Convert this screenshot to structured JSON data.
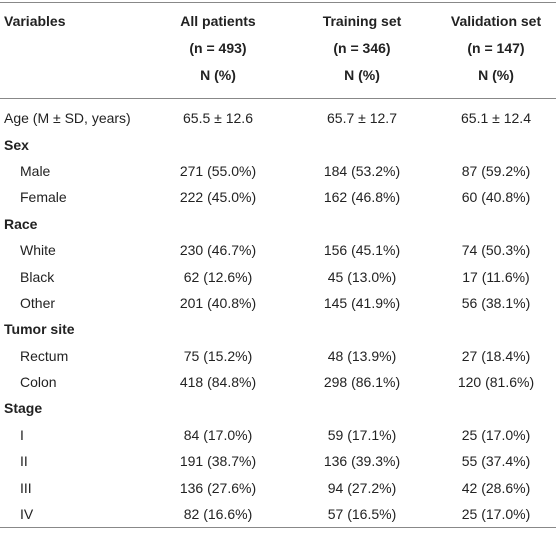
{
  "table": {
    "header": [
      {
        "title": "Variables"
      },
      {
        "title": "All patients",
        "n": "(n = 493)",
        "stat": "N (%)"
      },
      {
        "title": "Training set",
        "n": "(n = 346)",
        "stat": "N (%)"
      },
      {
        "title": "Validation set",
        "n": "(n = 147)",
        "stat": "N (%)"
      }
    ],
    "rows": [
      {
        "label": "Age (M ± SD, years)",
        "values": [
          "65.5 ± 12.6",
          "65.7 ± 12.7",
          "65.1 ± 12.4"
        ]
      },
      {
        "section": "Sex"
      },
      {
        "label": "Male",
        "values": [
          "271 (55.0%)",
          "184 (53.2%)",
          "87 (59.2%)"
        ]
      },
      {
        "label": "Female",
        "values": [
          "222 (45.0%)",
          "162 (46.8%)",
          "60 (40.8%)"
        ]
      },
      {
        "section": "Race"
      },
      {
        "label": "White",
        "values": [
          "230 (46.7%)",
          "156 (45.1%)",
          "74 (50.3%)"
        ]
      },
      {
        "label": "Black",
        "values": [
          "62 (12.6%)",
          "45 (13.0%)",
          "17 (11.6%)"
        ]
      },
      {
        "label": "Other",
        "values": [
          "201 (40.8%)",
          "145 (41.9%)",
          "56 (38.1%)"
        ]
      },
      {
        "section": "Tumor site"
      },
      {
        "label": "Rectum",
        "values": [
          "75 (15.2%)",
          "48 (13.9%)",
          "27 (18.4%)"
        ]
      },
      {
        "label": "Colon",
        "values": [
          "418 (84.8%)",
          "298 (86.1%)",
          "120 (81.6%)"
        ]
      },
      {
        "section": "Stage"
      },
      {
        "label": "I",
        "values": [
          "84 (17.0%)",
          "59 (17.1%)",
          "25 (17.0%)"
        ]
      },
      {
        "label": "II",
        "values": [
          "191 (38.7%)",
          "136 (39.3%)",
          "55 (37.4%)"
        ]
      },
      {
        "label": "III",
        "values": [
          "136 (27.6%)",
          "94 (27.2%)",
          "42 (28.6%)"
        ]
      },
      {
        "label": "IV",
        "values": [
          "82 (16.6%)",
          "57 (16.5%)",
          "25 (17.0%)"
        ]
      }
    ]
  }
}
